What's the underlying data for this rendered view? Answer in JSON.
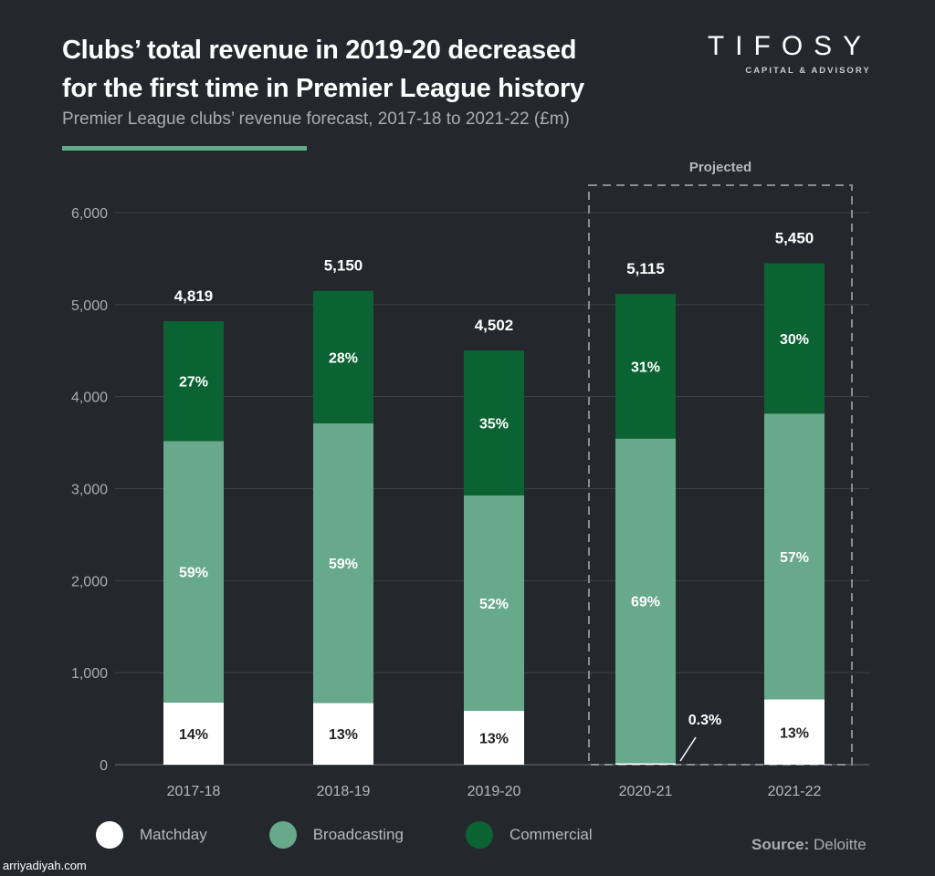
{
  "header": {
    "title_line1": "Clubs’ total revenue in 2019-20 decreased",
    "title_line2": "for the first time in Premier League history",
    "subtitle": "Premier League clubs’ revenue forecast, 2017-18 to 2021-22 (£m)"
  },
  "logo": {
    "name": "TIFOSY",
    "tagline": "CAPITAL & ADVISORY"
  },
  "source": {
    "label": "Source:",
    "value": "Deloitte"
  },
  "watermark": "arriyadiyah.com",
  "colors": {
    "matchday": "#ffffff",
    "broadcasting": "#67a98a",
    "commercial": "#0b6333",
    "background": "#24282c"
  },
  "chart_data": {
    "type": "bar",
    "stacked": true,
    "title": "Clubs’ total revenue in 2019-20 decreased for the first time in Premier League history",
    "subtitle": "Premier League clubs’ revenue forecast, 2017-18 to 2021-22 (£m)",
    "categories": [
      "2017-18",
      "2018-19",
      "2019-20",
      "2020-21",
      "2021-22"
    ],
    "series": [
      {
        "name": "Matchday",
        "values": [
          675,
          670,
          585,
          15,
          709
        ],
        "labels": [
          "14%",
          "13%",
          "13%",
          "0.3%",
          "13%"
        ]
      },
      {
        "name": "Broadcasting",
        "values": [
          2843,
          3039,
          2341,
          3529,
          3107
        ],
        "labels": [
          "59%",
          "59%",
          "52%",
          "69%",
          "57%"
        ]
      },
      {
        "name": "Commercial",
        "values": [
          1301,
          1441,
          1576,
          1571,
          1634
        ],
        "labels": [
          "27%",
          "28%",
          "35%",
          "31%",
          "30%"
        ]
      }
    ],
    "totals": [
      "4,819",
      "5,150",
      "4,502",
      "5,115",
      "5,450"
    ],
    "yticks": [
      "0",
      "1,000",
      "2,000",
      "3,000",
      "4,000",
      "5,000",
      "6,000"
    ],
    "ylim": [
      0,
      6000
    ],
    "grid": true,
    "annotation": "Projected",
    "projected_categories": [
      "2020-21",
      "2021-22"
    ],
    "legend_position": "bottom"
  }
}
